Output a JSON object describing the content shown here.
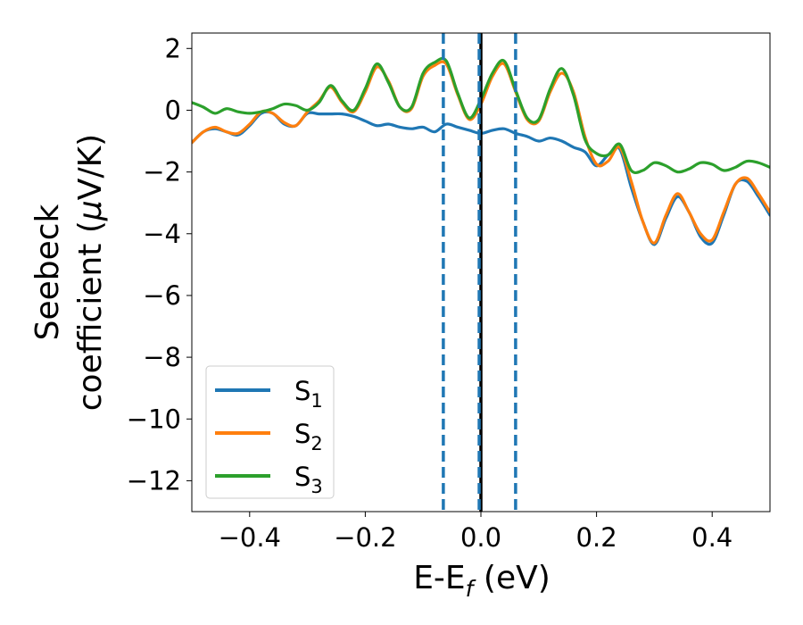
{
  "chart_data": {
    "type": "line",
    "xlabel": {
      "main": "E-E",
      "sub": "f",
      "tail": " (eV)"
    },
    "ylabel": {
      "line1": "Seebeck",
      "line2": "coefficient  (",
      "mu": "μ",
      "line2_tail": "V/K)"
    },
    "xlim": [
      -0.5,
      0.5
    ],
    "ylim": [
      -13,
      2.5
    ],
    "xticks": [
      -0.4,
      -0.2,
      0.0,
      0.2,
      0.4
    ],
    "xtick_labels": [
      "−0.4",
      "−0.2",
      "0.0",
      "0.2",
      "0.4"
    ],
    "yticks": [
      2,
      0,
      -2,
      -4,
      -6,
      -8,
      -10,
      -12
    ],
    "ytick_labels": [
      "2",
      "0",
      "−2",
      "−4",
      "−6",
      "−8",
      "−10",
      "−12"
    ],
    "grid": false,
    "legend_position": "lower-left",
    "vlines": [
      {
        "x": -0.065,
        "style": "dashed",
        "color": "#1f77b4"
      },
      {
        "x": 0.0,
        "style": "solid",
        "color": "#000000"
      },
      {
        "x": -0.003,
        "style": "dashed",
        "color": "#1f77b4"
      },
      {
        "x": 0.06,
        "style": "dashed",
        "color": "#1f77b4"
      }
    ],
    "series": [
      {
        "name": "S",
        "sub": "1",
        "color": "#1f77b4",
        "x": [
          -0.5,
          -0.48,
          -0.46,
          -0.44,
          -0.42,
          -0.4,
          -0.38,
          -0.36,
          -0.34,
          -0.32,
          -0.3,
          -0.28,
          -0.26,
          -0.24,
          -0.22,
          -0.2,
          -0.18,
          -0.16,
          -0.14,
          -0.12,
          -0.1,
          -0.08,
          -0.06,
          -0.04,
          -0.02,
          0.0,
          0.02,
          0.04,
          0.06,
          0.08,
          0.1,
          0.12,
          0.14,
          0.16,
          0.18,
          0.2,
          0.22,
          0.24,
          0.26,
          0.28,
          0.3,
          0.32,
          0.34,
          0.36,
          0.38,
          0.4,
          0.42,
          0.44,
          0.46,
          0.48,
          0.5
        ],
        "y": [
          -1.05,
          -0.7,
          -0.6,
          -0.7,
          -0.8,
          -0.5,
          -0.1,
          -0.1,
          -0.45,
          -0.5,
          -0.1,
          -0.12,
          -0.12,
          -0.12,
          -0.2,
          -0.35,
          -0.5,
          -0.45,
          -0.55,
          -0.6,
          -0.55,
          -0.7,
          -0.45,
          -0.55,
          -0.65,
          -0.75,
          -0.65,
          -0.6,
          -0.75,
          -0.85,
          -1.0,
          -0.9,
          -1.0,
          -1.2,
          -1.35,
          -1.8,
          -1.45,
          -1.25,
          -2.5,
          -3.6,
          -4.35,
          -3.5,
          -2.8,
          -3.3,
          -4.1,
          -4.3,
          -3.4,
          -2.4,
          -2.3,
          -2.8,
          -3.4
        ]
      },
      {
        "name": "S",
        "sub": "2",
        "color": "#ff7f0e",
        "x": [
          -0.5,
          -0.48,
          -0.46,
          -0.44,
          -0.42,
          -0.4,
          -0.38,
          -0.36,
          -0.34,
          -0.32,
          -0.3,
          -0.28,
          -0.26,
          -0.24,
          -0.22,
          -0.2,
          -0.18,
          -0.16,
          -0.14,
          -0.12,
          -0.1,
          -0.08,
          -0.06,
          -0.04,
          -0.02,
          0.0,
          0.02,
          0.04,
          0.06,
          0.08,
          0.1,
          0.12,
          0.14,
          0.16,
          0.18,
          0.2,
          0.22,
          0.24,
          0.26,
          0.28,
          0.3,
          0.32,
          0.34,
          0.36,
          0.38,
          0.4,
          0.42,
          0.44,
          0.46,
          0.48,
          0.5
        ],
        "y": [
          -1.05,
          -0.7,
          -0.55,
          -0.7,
          -0.75,
          -0.45,
          -0.05,
          -0.1,
          -0.4,
          -0.5,
          -0.05,
          0.3,
          0.75,
          0.25,
          -0.05,
          0.6,
          1.4,
          0.95,
          0.1,
          0.05,
          1.1,
          1.45,
          1.5,
          0.5,
          -0.3,
          0.2,
          1.1,
          1.5,
          0.6,
          -0.3,
          -0.35,
          0.6,
          1.2,
          0.6,
          -0.85,
          -1.75,
          -1.65,
          -1.2,
          -2.3,
          -3.6,
          -4.3,
          -3.4,
          -2.7,
          -3.3,
          -4.0,
          -4.2,
          -3.3,
          -2.4,
          -2.2,
          -2.7,
          -3.3
        ]
      },
      {
        "name": "S",
        "sub": "3",
        "color": "#2ca02c",
        "x": [
          -0.5,
          -0.48,
          -0.46,
          -0.44,
          -0.42,
          -0.4,
          -0.38,
          -0.36,
          -0.34,
          -0.32,
          -0.3,
          -0.28,
          -0.26,
          -0.24,
          -0.22,
          -0.2,
          -0.18,
          -0.16,
          -0.14,
          -0.12,
          -0.1,
          -0.08,
          -0.06,
          -0.04,
          -0.02,
          0.0,
          0.02,
          0.04,
          0.06,
          0.08,
          0.1,
          0.12,
          0.14,
          0.16,
          0.18,
          0.2,
          0.22,
          0.24,
          0.26,
          0.28,
          0.3,
          0.32,
          0.34,
          0.36,
          0.38,
          0.4,
          0.42,
          0.44,
          0.46,
          0.48,
          0.5
        ],
        "y": [
          0.25,
          0.1,
          -0.1,
          0.05,
          -0.05,
          -0.1,
          -0.05,
          0.05,
          0.2,
          0.15,
          0.0,
          0.25,
          0.8,
          0.3,
          0.0,
          0.7,
          1.5,
          0.9,
          0.1,
          0.1,
          1.2,
          1.55,
          1.6,
          0.55,
          -0.25,
          0.35,
          1.2,
          1.6,
          0.65,
          -0.25,
          -0.3,
          0.7,
          1.35,
          0.5,
          -0.95,
          -1.4,
          -1.45,
          -1.1,
          -1.95,
          -1.95,
          -1.7,
          -1.8,
          -2.0,
          -1.9,
          -1.7,
          -1.75,
          -1.95,
          -1.85,
          -1.65,
          -1.7,
          -1.85
        ]
      }
    ]
  }
}
